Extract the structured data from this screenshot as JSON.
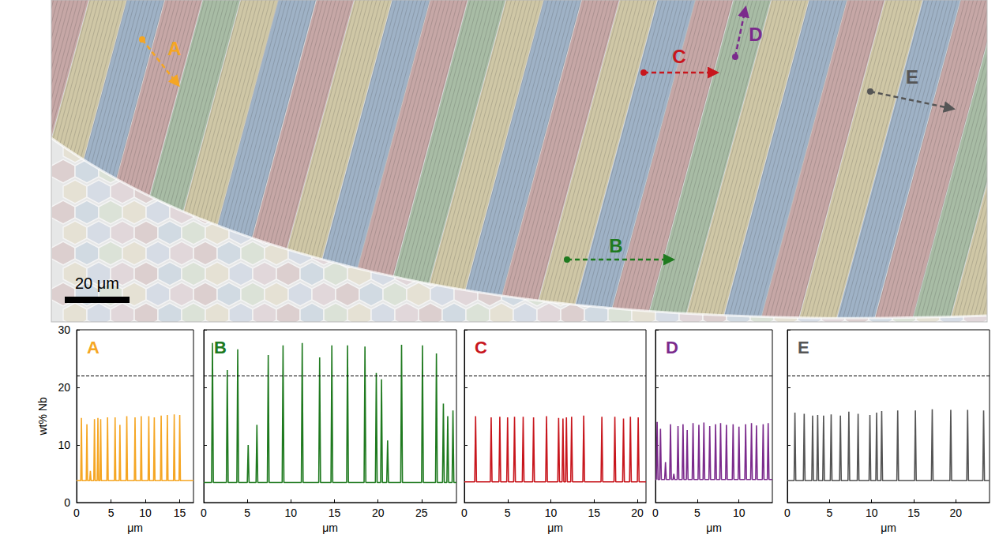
{
  "micrograph": {
    "scale_bar": "20 μm"
  },
  "chart_data": [
    {
      "type": "line",
      "title": "A",
      "xlabel": "μm",
      "ylabel": "wt% Nb",
      "color": "#f5a623",
      "grid": false,
      "xlim": [
        0,
        17
      ],
      "xticks": [
        0,
        5,
        10,
        15
      ],
      "ylim": [
        0,
        30
      ],
      "yticks": [
        0,
        10,
        20,
        30
      ],
      "reference_line": {
        "value": 22,
        "line_style": "dashed"
      },
      "x": [
        0,
        0.6,
        0.7,
        0.8,
        1.4,
        1.5,
        1.6,
        1.9,
        2.0,
        2.1,
        2.5,
        2.6,
        2.7,
        3.0,
        3.1,
        3.2,
        3.4,
        3.5,
        3.6,
        4.4,
        4.5,
        4.6,
        5.5,
        5.6,
        5.7,
        6.2,
        6.3,
        6.4,
        7.2,
        7.3,
        7.4,
        8.4,
        8.5,
        8.6,
        9.3,
        9.4,
        9.5,
        10.4,
        10.5,
        10.6,
        11.2,
        11.3,
        11.4,
        12.2,
        12.3,
        12.4,
        13.1,
        13.2,
        13.3,
        14.1,
        14.2,
        14.3,
        14.9,
        15.0,
        15.1,
        17
      ],
      "values": [
        3.8,
        3.8,
        14.7,
        3.8,
        3.8,
        13.6,
        3.8,
        3.8,
        5.5,
        3.8,
        3.8,
        14.5,
        3.8,
        3.8,
        14.7,
        3.8,
        3.8,
        14.5,
        3.8,
        3.8,
        14.8,
        3.8,
        3.8,
        14.8,
        3.8,
        3.8,
        13.5,
        3.8,
        3.8,
        15.0,
        3.8,
        3.8,
        14.8,
        3.8,
        3.8,
        15.0,
        3.8,
        3.8,
        15.0,
        3.8,
        3.8,
        14.8,
        3.8,
        3.8,
        15.1,
        3.8,
        3.8,
        15.2,
        3.8,
        3.8,
        15.3,
        3.8,
        3.8,
        15.2,
        3.8,
        3.8
      ]
    },
    {
      "type": "line",
      "title": "B",
      "xlabel": "μm",
      "color": "#1f7a1f",
      "grid": false,
      "tick_labels": "x",
      "xlim": [
        0,
        29
      ],
      "xticks": [
        0,
        5,
        10,
        15,
        20,
        25
      ],
      "ylim": [
        0,
        30
      ],
      "yticks": [
        0,
        10,
        20,
        30
      ],
      "reference_line": {
        "value": 22,
        "line_style": "dashed"
      },
      "x": [
        0,
        0.9,
        1.0,
        1.1,
        2.6,
        2.7,
        2.8,
        3.8,
        3.9,
        4.0,
        5.0,
        5.1,
        5.2,
        6.0,
        6.1,
        6.2,
        7.3,
        7.4,
        7.5,
        9.0,
        9.1,
        9.2,
        11.2,
        11.3,
        11.4,
        13.2,
        13.3,
        13.4,
        14.6,
        14.7,
        14.8,
        16.4,
        16.5,
        16.6,
        18.4,
        18.5,
        18.6,
        19.7,
        19.8,
        19.9,
        20.3,
        20.4,
        20.5,
        21.0,
        21.1,
        21.2,
        22.6,
        22.7,
        22.8,
        25.0,
        25.1,
        25.2,
        26.6,
        26.7,
        26.8,
        27.4,
        27.5,
        27.6,
        27.9,
        28.0,
        28.1,
        28.5,
        28.6,
        28.7,
        29
      ],
      "values": [
        3.5,
        3.5,
        27.7,
        3.5,
        3.5,
        23.0,
        3.5,
        3.5,
        26.6,
        3.5,
        3.5,
        10.0,
        3.5,
        3.5,
        13.5,
        3.5,
        3.5,
        25.6,
        3.5,
        3.5,
        27.3,
        3.5,
        3.5,
        27.7,
        3.5,
        3.5,
        25.2,
        3.5,
        3.5,
        27.3,
        3.5,
        3.5,
        27.3,
        3.5,
        3.5,
        27.1,
        3.5,
        3.5,
        22.5,
        3.5,
        3.5,
        21.4,
        3.5,
        3.5,
        10.8,
        3.5,
        3.5,
        27.4,
        3.5,
        3.5,
        27.3,
        3.5,
        3.5,
        25.9,
        3.5,
        3.5,
        17.2,
        3.5,
        3.5,
        15.0,
        3.5,
        3.5,
        16.0,
        3.5,
        3.5
      ]
    },
    {
      "type": "line",
      "title": "C",
      "xlabel": "μm",
      "color": "#c8161d",
      "grid": false,
      "tick_labels": "x",
      "xlim": [
        0,
        21
      ],
      "xticks": [
        0,
        5,
        10,
        15,
        20
      ],
      "ylim": [
        0,
        30
      ],
      "yticks": [
        0,
        10,
        20,
        30
      ],
      "reference_line": {
        "value": 22,
        "line_style": "dashed"
      },
      "x": [
        0,
        1.2,
        1.3,
        1.4,
        3.0,
        3.1,
        3.2,
        4.0,
        4.1,
        4.2,
        4.9,
        5.0,
        5.1,
        5.7,
        5.8,
        5.9,
        6.7,
        6.8,
        6.9,
        7.9,
        8.0,
        8.1,
        9.4,
        9.5,
        9.6,
        10.8,
        10.9,
        11.0,
        11.3,
        11.4,
        11.5,
        11.7,
        11.8,
        11.9,
        12.3,
        12.4,
        12.5,
        13.7,
        13.8,
        13.9,
        15.8,
        15.9,
        16.0,
        17.3,
        17.4,
        17.5,
        18.3,
        18.4,
        18.5,
        19.1,
        19.2,
        19.3,
        20.0,
        20.1,
        20.2,
        21
      ],
      "values": [
        3.6,
        3.6,
        15.0,
        3.6,
        3.6,
        14.8,
        3.6,
        3.6,
        14.9,
        3.6,
        3.6,
        14.8,
        3.6,
        3.6,
        14.9,
        3.6,
        3.6,
        14.9,
        3.6,
        3.6,
        14.8,
        3.6,
        3.6,
        15.0,
        3.6,
        3.6,
        14.7,
        3.6,
        3.6,
        14.6,
        3.6,
        3.6,
        14.8,
        3.6,
        3.6,
        14.9,
        3.6,
        3.6,
        15.1,
        3.6,
        3.6,
        14.9,
        3.6,
        3.6,
        14.9,
        3.6,
        3.6,
        14.6,
        3.6,
        3.6,
        14.9,
        3.6,
        3.6,
        14.8,
        3.6,
        3.6
      ]
    },
    {
      "type": "line",
      "title": "D",
      "xlabel": "μm",
      "color": "#7b2a8c",
      "grid": false,
      "tick_labels": "x",
      "xlim": [
        0,
        14
      ],
      "xticks": [
        0,
        5,
        10
      ],
      "ylim": [
        0,
        30
      ],
      "yticks": [
        0,
        10,
        20,
        30
      ],
      "reference_line": {
        "value": 22,
        "line_style": "dashed"
      },
      "x": [
        0,
        0.1,
        0.2,
        0.3,
        0.5,
        0.6,
        0.7,
        1.1,
        1.2,
        1.3,
        1.7,
        1.8,
        1.9,
        2.1,
        2.2,
        2.3,
        2.6,
        2.7,
        2.8,
        3.2,
        3.3,
        3.4,
        3.7,
        3.8,
        3.9,
        4.4,
        4.5,
        4.6,
        5.1,
        5.2,
        5.3,
        5.7,
        5.8,
        5.9,
        6.4,
        6.5,
        6.6,
        7.1,
        7.2,
        7.3,
        7.7,
        7.8,
        7.9,
        8.4,
        8.5,
        8.6,
        9.2,
        9.3,
        9.4,
        9.9,
        10.0,
        10.1,
        10.7,
        10.8,
        10.9,
        11.4,
        11.5,
        11.6,
        12.0,
        12.1,
        12.2,
        12.8,
        12.9,
        13.0,
        13.4,
        13.5,
        13.6,
        14
      ],
      "values": [
        4.0,
        4.0,
        14.0,
        4.0,
        4.0,
        12.8,
        4.0,
        4.0,
        7.0,
        4.0,
        4.0,
        13.6,
        4.0,
        4.0,
        5.0,
        4.0,
        4.0,
        13.3,
        4.0,
        4.0,
        13.6,
        4.0,
        4.0,
        12.6,
        4.0,
        4.0,
        13.8,
        4.0,
        4.0,
        13.5,
        4.0,
        4.0,
        13.9,
        4.0,
        4.0,
        13.3,
        4.0,
        4.0,
        13.6,
        4.0,
        4.0,
        13.8,
        4.0,
        4.0,
        13.5,
        4.0,
        4.0,
        13.6,
        4.0,
        4.0,
        13.2,
        4.0,
        4.0,
        13.6,
        4.0,
        4.0,
        13.8,
        4.0,
        4.0,
        13.4,
        4.0,
        4.0,
        13.6,
        4.0,
        4.0,
        13.8,
        4.0,
        4.0
      ]
    },
    {
      "type": "line",
      "title": "E",
      "xlabel": "μm",
      "color": "#555555",
      "grid": false,
      "tick_labels": "x",
      "xlim": [
        0,
        24
      ],
      "xticks": [
        0,
        5,
        10,
        15,
        20
      ],
      "ylim": [
        0,
        30
      ],
      "yticks": [
        0,
        10,
        20,
        30
      ],
      "reference_line": {
        "value": 22,
        "line_style": "dashed"
      },
      "x": [
        0,
        0.8,
        0.9,
        1.0,
        1.9,
        2.0,
        2.1,
        2.9,
        3.0,
        3.1,
        3.5,
        3.6,
        3.7,
        4.2,
        4.3,
        4.4,
        5.1,
        5.2,
        5.3,
        6.2,
        6.3,
        6.4,
        7.2,
        7.3,
        7.4,
        8.3,
        8.4,
        8.5,
        9.7,
        9.8,
        9.9,
        10.5,
        10.6,
        10.7,
        11.1,
        11.2,
        11.3,
        13.0,
        13.1,
        13.2,
        15.1,
        15.2,
        15.3,
        17.1,
        17.2,
        17.3,
        19.3,
        19.4,
        19.5,
        21.3,
        21.4,
        21.5,
        23.2,
        23.3,
        23.4,
        24
      ],
      "values": [
        3.8,
        3.8,
        15.6,
        3.8,
        3.8,
        15.4,
        3.8,
        3.8,
        15.1,
        3.8,
        3.8,
        15.2,
        3.8,
        3.8,
        15.1,
        3.8,
        3.8,
        15.3,
        3.8,
        3.8,
        15.1,
        3.8,
        3.8,
        15.8,
        3.8,
        3.8,
        15.4,
        3.8,
        3.8,
        15.2,
        3.8,
        3.8,
        15.6,
        3.8,
        3.8,
        15.9,
        3.8,
        3.8,
        16.0,
        3.8,
        3.8,
        16.0,
        3.8,
        3.8,
        16.2,
        3.8,
        3.8,
        16.1,
        3.8,
        3.8,
        16.1,
        3.8,
        3.8,
        16.0,
        3.8,
        3.8
      ]
    }
  ]
}
